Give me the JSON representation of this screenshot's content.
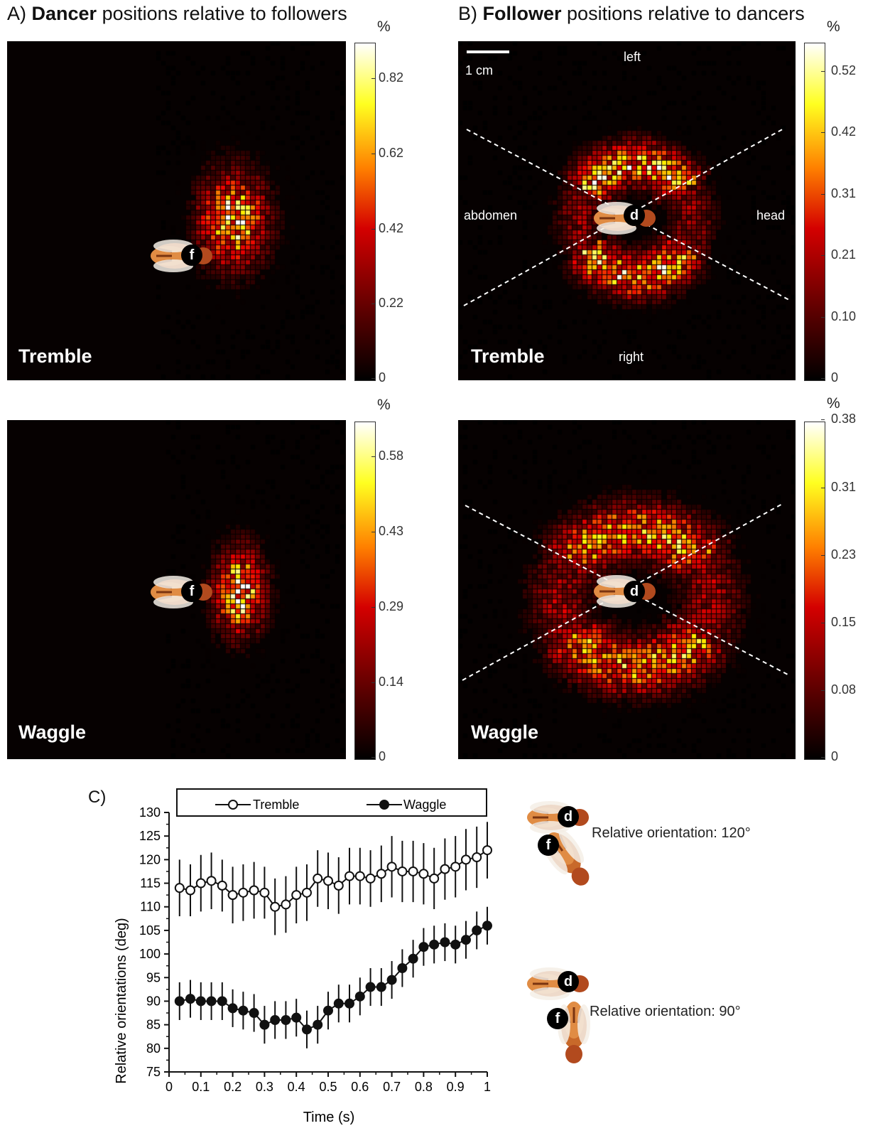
{
  "panel_a": {
    "letter": "A)",
    "title_bold": "Dancer",
    "title_rest": " positions relative to followers"
  },
  "panel_b": {
    "letter": "B)",
    "title_bold": "Follower",
    "title_rest": " positions relative to dancers"
  },
  "heatmaps": {
    "tremble_label": "Tremble",
    "waggle_label": "Waggle",
    "follower_badge": "f",
    "dancer_badge": "d",
    "scalebar_label": "1 cm",
    "dir_left": "left",
    "dir_right": "right",
    "dir_abdomen": "abdomen",
    "dir_head": "head"
  },
  "colorbars": {
    "unit": "%",
    "a_tremble": [
      "0.82",
      "0.62",
      "0.42",
      "0.22",
      "0"
    ],
    "a_waggle": [
      "0.58",
      "0.43",
      "0.29",
      "0.14",
      "0"
    ],
    "b_tremble": [
      "0.52",
      "0.42",
      "0.31",
      "0.21",
      "0.10",
      "0"
    ],
    "b_waggle": [
      "0.38",
      "0.31",
      "0.23",
      "0.15",
      "0.08",
      "0"
    ]
  },
  "orientation_examples": [
    {
      "label": "Relative orientation: 120°",
      "dancer_badge": "d",
      "follower_badge": "f"
    },
    {
      "label": "Relative orientation: 90°",
      "dancer_badge": "d",
      "follower_badge": "f"
    }
  ],
  "colors": {
    "heat_low": "#000000",
    "heat_mid": "#e01010",
    "heat_high": "#ffff60",
    "heat_max": "#ffffff"
  },
  "chart_data": [
    {
      "type": "heatmap",
      "title": "Dancer positions relative to followers",
      "panel": "A",
      "row": "Tremble",
      "colorbar_range": [
        0,
        0.92
      ],
      "colorbar_ticks": [
        0,
        0.22,
        0.42,
        0.62,
        0.82
      ],
      "unit": "%"
    },
    {
      "type": "heatmap",
      "title": "Dancer positions relative to followers",
      "panel": "A",
      "row": "Waggle",
      "colorbar_range": [
        0,
        0.65
      ],
      "colorbar_ticks": [
        0,
        0.14,
        0.29,
        0.43,
        0.58
      ],
      "unit": "%"
    },
    {
      "type": "heatmap",
      "title": "Follower positions relative to dancers",
      "panel": "B",
      "row": "Tremble",
      "colorbar_range": [
        0,
        0.57
      ],
      "colorbar_ticks": [
        0,
        0.1,
        0.21,
        0.31,
        0.42,
        0.52
      ],
      "unit": "%"
    },
    {
      "type": "heatmap",
      "title": "Follower positions relative to dancers",
      "panel": "B",
      "row": "Waggle",
      "colorbar_range": [
        0,
        0.38
      ],
      "colorbar_ticks": [
        0,
        0.08,
        0.15,
        0.23,
        0.31,
        0.38
      ],
      "unit": "%"
    },
    {
      "type": "line",
      "panel": "C)",
      "xlabel": "Time (s)",
      "ylabel": "Relative orientations (deg)",
      "xlim": [
        0,
        1
      ],
      "ylim": [
        75,
        130
      ],
      "xticks": [
        "0",
        "0.1",
        "0.2",
        "0.3",
        "0.4",
        "0.5",
        "0.6",
        "0.7",
        "0.8",
        "0.9",
        "1"
      ],
      "yticks": [
        "130",
        "125",
        "120",
        "115",
        "110",
        "105",
        "100",
        "95",
        "90",
        "85",
        "80",
        "75"
      ],
      "x": [
        0.033,
        0.067,
        0.1,
        0.133,
        0.167,
        0.2,
        0.233,
        0.267,
        0.3,
        0.333,
        0.367,
        0.4,
        0.433,
        0.467,
        0.5,
        0.533,
        0.567,
        0.6,
        0.633,
        0.667,
        0.7,
        0.733,
        0.767,
        0.8,
        0.833,
        0.867,
        0.9,
        0.933,
        0.967,
        1.0
      ],
      "legend_position": "top",
      "series": [
        {
          "name": "Tremble",
          "marker": "open-circle",
          "values": [
            114,
            113.5,
            115,
            115.5,
            114.5,
            112.5,
            113,
            113.5,
            113,
            110,
            110.5,
            112.5,
            113,
            116,
            115.5,
            114.5,
            116.5,
            116.5,
            116,
            117,
            118.5,
            117.5,
            117.5,
            117,
            116,
            118,
            118.5,
            120,
            120.5,
            122
          ],
          "err": [
            6,
            5.5,
            6,
            6,
            5.5,
            6,
            6,
            6,
            5.5,
            6,
            6,
            6,
            6,
            6,
            6,
            6,
            6,
            6,
            6,
            6,
            6.5,
            6.5,
            6.5,
            6.5,
            6.5,
            6.5,
            6.5,
            6.5,
            6.5,
            6
          ]
        },
        {
          "name": "Waggle",
          "marker": "filled-circle",
          "values": [
            90,
            90.5,
            90,
            90,
            90,
            88.5,
            88,
            87.5,
            85,
            86,
            86,
            86.5,
            84,
            85,
            88,
            89.5,
            89.5,
            91,
            93,
            93,
            94.5,
            97,
            99,
            101.5,
            102,
            102.5,
            102,
            103,
            105,
            106
          ],
          "err": [
            4,
            4,
            4,
            4,
            4,
            4,
            4,
            4,
            4,
            4,
            4,
            4,
            4,
            4,
            4,
            4,
            4,
            4,
            4,
            4,
            4,
            4,
            4,
            4,
            4,
            4,
            4,
            4,
            4,
            4
          ]
        }
      ]
    }
  ]
}
